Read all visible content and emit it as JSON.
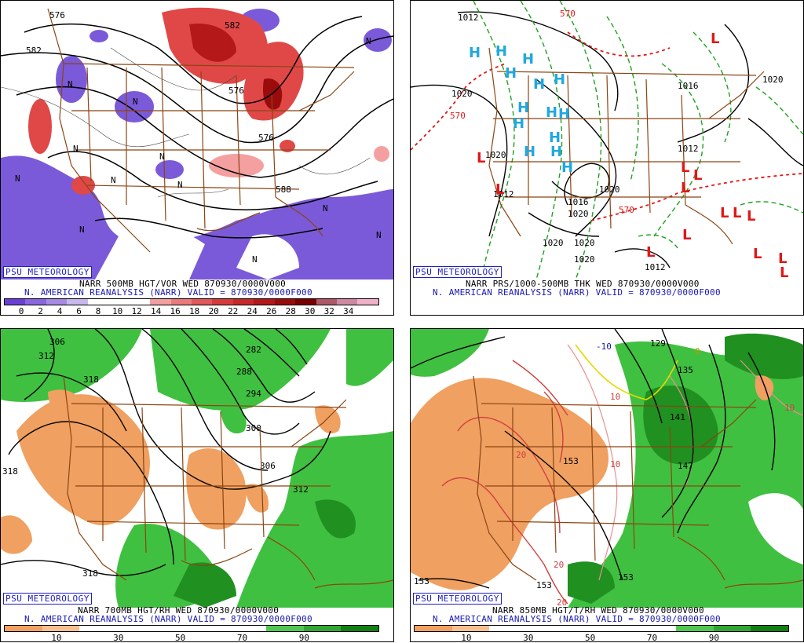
{
  "panels": {
    "p1": {
      "tag": "PSU METEOROLOGY",
      "line1": "NARR 500MB HGT/VOR WED 870930/0000V000",
      "line2": "N. AMERICAN REANALYSIS (NARR) VALID = 870930/0000F000",
      "contour_labels": [
        "576",
        "582",
        "576",
        "588",
        "576",
        "582"
      ],
      "region_labels": [
        "N",
        "N",
        "N",
        "N",
        "N",
        "N",
        "N",
        "N",
        "N",
        "N",
        "N",
        "N"
      ],
      "legend": {
        "ticks": [
          "0",
          "2",
          "4",
          "6",
          "8",
          "10",
          "12",
          "14",
          "16",
          "18",
          "20",
          "22",
          "24",
          "26",
          "28",
          "30",
          "32",
          "34"
        ],
        "colors": [
          "#6a3fd8",
          "#8a66e0",
          "#a68ae6",
          "#c9b8ee",
          "#ffffff",
          "#ffffff",
          "#ffffff",
          "#f4a0a0",
          "#ec7a7a",
          "#e35858",
          "#d83a3a",
          "#c82828",
          "#b41818",
          "#9a0c0c",
          "#7a0000",
          "#b05868",
          "#d088a0",
          "#f0b0c8"
        ]
      }
    },
    "p2": {
      "tag": "PSU METEOROLOGY",
      "line1": "NARR PRS/1000-500MB THK WED 870930/0000V000",
      "line2": "N. AMERICAN REANALYSIS (NARR) VALID = 870930/0000F000",
      "pressure_labels": [
        "1012",
        "1020",
        "1020",
        "1020",
        "1020",
        "1020",
        "1020",
        "1020",
        "1012",
        "1012",
        "1016",
        "1012",
        "1020",
        "1016"
      ],
      "thickness_labels": [
        "570",
        "570",
        "570"
      ],
      "high_symbol": "H",
      "low_symbol": "L",
      "high_color": "#20a8e0",
      "low_color": "#e01818"
    },
    "p3": {
      "tag": "PSU METEOROLOGY",
      "line1": "NARR 700MB HGT/RH WED 870930/0000V000",
      "line2": "N. AMERICAN REANALYSIS (NARR) VALID = 870930/0000F000",
      "contour_labels": [
        "306",
        "312",
        "318",
        "282",
        "288",
        "294",
        "300",
        "306",
        "312",
        "318",
        "318"
      ],
      "legend": {
        "ticks": [
          "10",
          "30",
          "50",
          "70",
          "90"
        ],
        "colors": [
          "#f0a060",
          "#f8c090",
          "#ffffff",
          "#ffffff",
          "#ffffff",
          "#ffffff",
          "#ffffff",
          "#50c850",
          "#30a830",
          "#108010"
        ]
      }
    },
    "p4": {
      "tag": "PSU METEOROLOGY",
      "line1": "NARR 850MB HGT/T/RH WED 870930/0000V000",
      "line2": "N. AMERICAN REANALYSIS (NARR) VALID = 870930/0000F000",
      "height_labels": [
        "129",
        "135",
        "141",
        "147",
        "153",
        "153",
        "153",
        "153"
      ],
      "temp_labels": [
        "-10",
        "0",
        "10",
        "20",
        "20",
        "10",
        "20",
        "10"
      ],
      "legend": {
        "ticks": [
          "10",
          "30",
          "50",
          "70",
          "90"
        ],
        "colors": [
          "#f0a060",
          "#f8c090",
          "#ffffff",
          "#ffffff",
          "#ffffff",
          "#ffffff",
          "#ffffff",
          "#50c850",
          "#30a830",
          "#108010"
        ]
      }
    }
  },
  "colors": {
    "vort_neg": "#7a5ad8",
    "vort_pos": "#e04848",
    "rh_dry": "#f0a060",
    "rh_moist": "#40c040",
    "rh_wet": "#209020",
    "borders": "#8b4513",
    "thickness": "#20a020",
    "thickness_570": "#e01818",
    "temp_warm": "#d04040",
    "temp_cold": "#e8d800"
  }
}
